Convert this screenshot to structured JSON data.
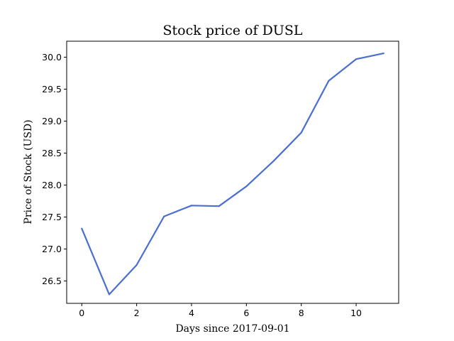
{
  "chart_data": {
    "type": "line",
    "title": "Stock price of DUSL",
    "xlabel": "Days since 2017-09-01",
    "ylabel": "Price of Stock (USD)",
    "x": [
      0,
      1,
      2,
      3,
      4,
      5,
      6,
      7,
      8,
      9,
      10,
      11
    ],
    "series": [
      {
        "values": [
          27.32,
          26.29,
          26.75,
          27.51,
          27.68,
          27.67,
          27.98,
          28.38,
          28.82,
          29.63,
          29.97,
          30.06
        ],
        "color": "#4a6fcf"
      }
    ],
    "xlim": [
      -0.55,
      11.55
    ],
    "ylim": [
      26.15,
      30.25
    ],
    "xticks": [
      0,
      2,
      4,
      6,
      8,
      10
    ],
    "xtick_labels": [
      "0",
      "2",
      "4",
      "6",
      "8",
      "10"
    ],
    "yticks": [
      26.5,
      27.0,
      27.5,
      28.0,
      28.5,
      29.0,
      29.5,
      30.0
    ],
    "ytick_labels": [
      "26.5",
      "27.0",
      "27.5",
      "28.0",
      "28.5",
      "29.0",
      "29.5",
      "30.0"
    ],
    "grid": false,
    "legend": "none"
  }
}
